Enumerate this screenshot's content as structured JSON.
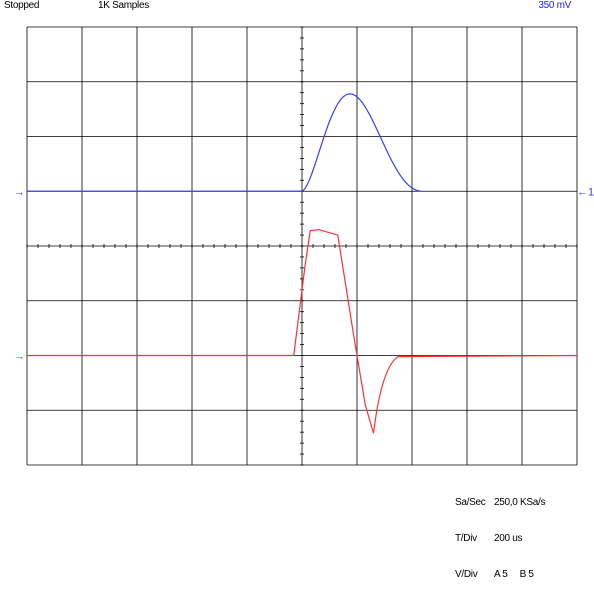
{
  "status": {
    "state": "Stopped",
    "samples": "1K Samples",
    "volts": "350 mV"
  },
  "channels": [
    {
      "name": "A",
      "color": "#3b3bff",
      "marker_left": "→",
      "marker_right": "←1"
    },
    {
      "name": "B",
      "color": "#ff3030",
      "marker_left": "→"
    }
  ],
  "grid": {
    "divisions_x": 10,
    "divisions_y": 8,
    "line_color": "#000000",
    "trace_a_color": "#3b3bff",
    "trace_b_color": "#ff3030"
  },
  "readout": {
    "sa_sec_label": "Sa/Sec",
    "sa_sec_value": "250,0 KSa/s",
    "tdiv_label": "T/Div",
    "tdiv_value": "200 us",
    "vdiv_label": "V/Div",
    "vdiv_a": "A 5",
    "vdiv_b": "B 5"
  }
}
